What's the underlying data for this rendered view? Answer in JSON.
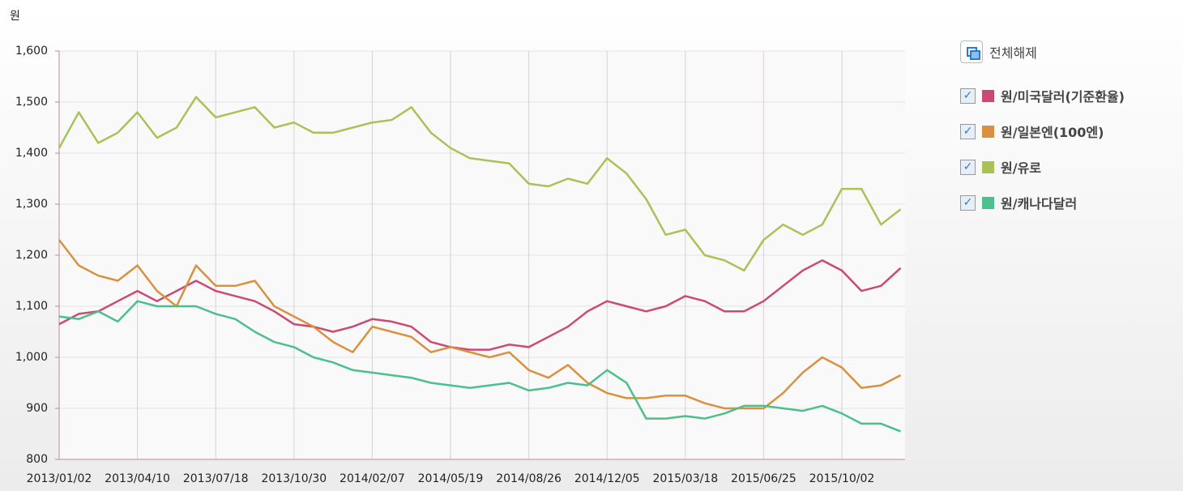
{
  "chart_data": {
    "type": "line",
    "ylabel": "원",
    "categories": [
      "2013/01/02",
      null,
      null,
      null,
      "2013/04/10",
      null,
      null,
      null,
      "2013/07/18",
      null,
      null,
      null,
      "2013/10/30",
      null,
      null,
      null,
      "2014/02/07",
      null,
      null,
      null,
      "2014/05/19",
      null,
      null,
      null,
      "2014/08/26",
      null,
      null,
      null,
      "2014/12/05",
      null,
      null,
      null,
      "2015/03/18",
      null,
      null,
      null,
      "2015/06/25",
      null,
      null,
      null,
      "2015/10/02",
      null,
      null,
      null
    ],
    "series": [
      {
        "name": "원/미국달러(기준환율)",
        "color": "#cc4a72",
        "values": [
          1065,
          1085,
          1090,
          1110,
          1130,
          1110,
          1130,
          1150,
          1130,
          1120,
          1110,
          1090,
          1065,
          1060,
          1050,
          1060,
          1075,
          1070,
          1060,
          1030,
          1020,
          1015,
          1015,
          1025,
          1020,
          1040,
          1060,
          1090,
          1110,
          1100,
          1090,
          1100,
          1120,
          1110,
          1090,
          1090,
          1110,
          1140,
          1170,
          1190,
          1170,
          1130,
          1140,
          1175
        ]
      },
      {
        "name": "원/일본엔(100엔)",
        "color": "#d9913f",
        "values": [
          1230,
          1180,
          1160,
          1150,
          1180,
          1130,
          1100,
          1180,
          1140,
          1140,
          1150,
          1100,
          1080,
          1060,
          1030,
          1010,
          1060,
          1050,
          1040,
          1010,
          1020,
          1010,
          1000,
          1010,
          975,
          960,
          985,
          950,
          930,
          920,
          920,
          925,
          925,
          910,
          900,
          900,
          900,
          930,
          970,
          1000,
          980,
          940,
          945,
          965
        ]
      },
      {
        "name": "원/유로",
        "color": "#a8c256",
        "values": [
          1410,
          1480,
          1420,
          1440,
          1480,
          1430,
          1450,
          1510,
          1470,
          1480,
          1490,
          1450,
          1460,
          1440,
          1440,
          1450,
          1460,
          1465,
          1490,
          1440,
          1410,
          1390,
          1385,
          1380,
          1340,
          1335,
          1350,
          1340,
          1390,
          1360,
          1310,
          1240,
          1250,
          1200,
          1190,
          1170,
          1230,
          1260,
          1240,
          1260,
          1330,
          1330,
          1260,
          1290
        ]
      },
      {
        "name": "원/캐나다달러",
        "color": "#4cc08c",
        "values": [
          1080,
          1075,
          1090,
          1070,
          1110,
          1100,
          1100,
          1100,
          1085,
          1075,
          1050,
          1030,
          1020,
          1000,
          990,
          975,
          970,
          965,
          960,
          950,
          945,
          940,
          945,
          950,
          935,
          940,
          950,
          945,
          975,
          950,
          880,
          880,
          885,
          880,
          890,
          905,
          905,
          900,
          895,
          905,
          890,
          870,
          870,
          855
        ]
      }
    ],
    "ylim": [
      800,
      1600
    ],
    "yticks": [
      800,
      900,
      {
        "value": 1000,
        "label": "1,000"
      },
      {
        "value": 1100,
        "label": "1,100"
      },
      {
        "value": 1200,
        "label": "1,200"
      },
      {
        "value": 1300,
        "label": "1,300"
      },
      {
        "value": 1400,
        "label": "1,400"
      },
      {
        "value": 1500,
        "label": "1,500"
      },
      {
        "value": 1600,
        "label": "1,600"
      }
    ],
    "grid": true
  },
  "controls": {
    "deselect_all": "전체해제"
  }
}
